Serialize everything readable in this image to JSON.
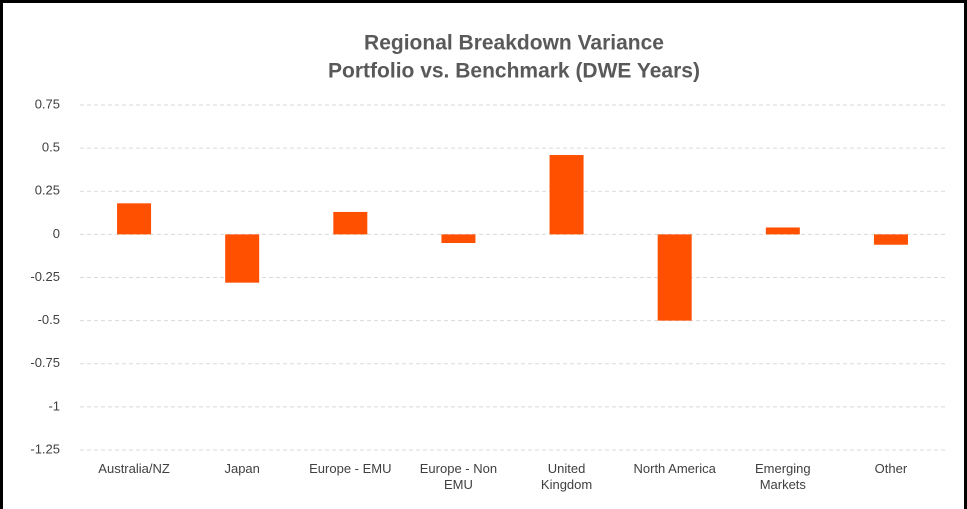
{
  "chart_data": {
    "type": "bar",
    "title": "Regional Breakdown Variance",
    "subtitle": "Portfolio vs. Benchmark (DWE Years)",
    "categories": [
      "Australia/NZ",
      "Japan",
      "Europe - EMU",
      "Europe - Non EMU",
      "United Kingdom",
      "North America",
      "Emerging Markets",
      "Other"
    ],
    "values": [
      0.18,
      -0.28,
      0.13,
      -0.05,
      0.46,
      -0.5,
      0.04,
      -0.06
    ],
    "color": "#ff5000",
    "ylim": [
      -1.25,
      0.75
    ],
    "yticks": [
      -1.25,
      -1,
      -0.75,
      -0.5,
      -0.25,
      0,
      0.25,
      0.5,
      0.75
    ],
    "grid": true
  }
}
